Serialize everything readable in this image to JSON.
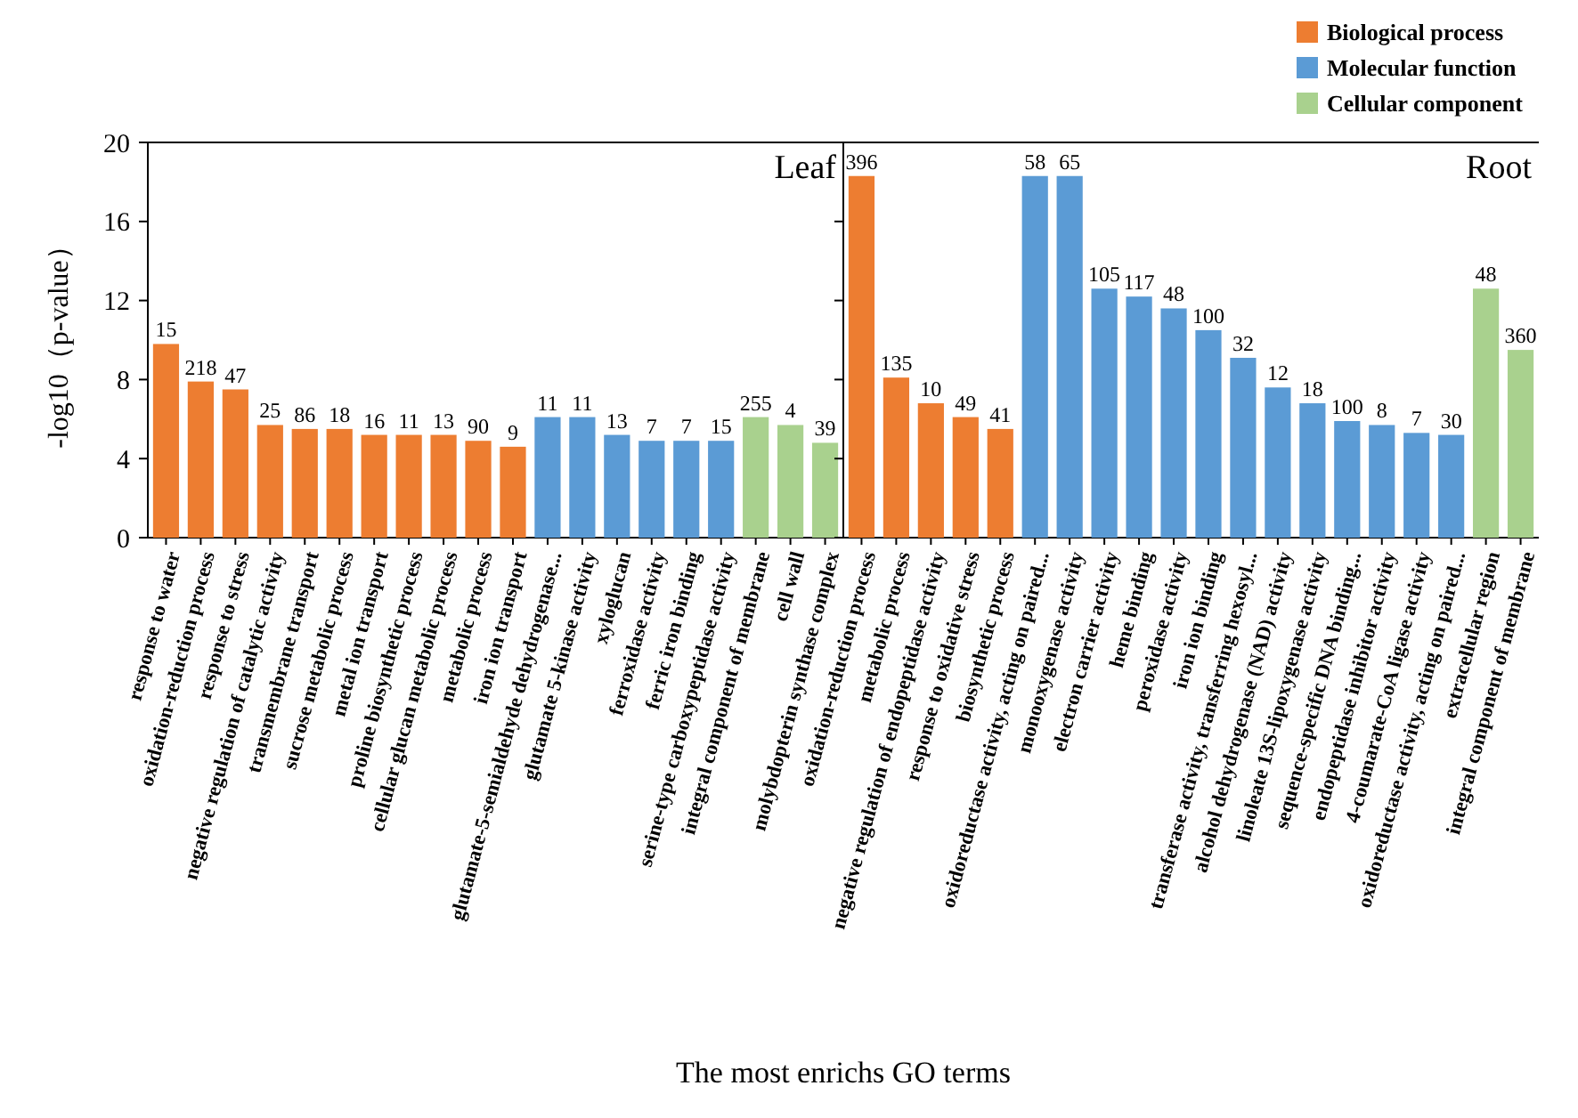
{
  "chart_data": [
    {
      "type": "bar",
      "ylabel": "-log10（p-value）",
      "xlabel": "The most enrichs GO terms",
      "annotations": [
        "Leaf"
      ],
      "ylim": [
        0,
        20
      ],
      "yticks": [
        0,
        4,
        8,
        12,
        16,
        20
      ],
      "legend": false,
      "categories": [
        "response to water",
        "oxidation-reduction process",
        "response to stress",
        "negative regulation of catalytic activity",
        "transmembrane transport",
        "sucrose metabolic process",
        "metal ion transport",
        "proline biosynthetic process",
        "cellular glucan metabolic process",
        "metabolic process",
        "iron ion transport",
        "glutamate-5-semialdehyde dehydrogenase...",
        "glutamate 5-kinase activity",
        "xyloglucan",
        "ferroxidase activity",
        "ferric iron binding",
        "serine-type carboxypeptidase activity",
        "integral component of membrane",
        "cell wall",
        "molybdopterin synthase complex"
      ],
      "series": [
        {
          "color": "#ed7d31",
          "values": [
            9.8,
            7.9,
            7.5,
            5.7,
            5.5,
            5.5,
            5.2,
            5.2,
            5.2,
            4.9,
            4.6,
            null,
            null,
            null,
            null,
            null,
            null,
            null,
            null,
            null
          ]
        },
        {
          "color": "#5b9bd5",
          "values": [
            null,
            null,
            null,
            null,
            null,
            null,
            null,
            null,
            null,
            null,
            null,
            6.1,
            6.1,
            5.2,
            4.9,
            4.9,
            4.9,
            null,
            null,
            null
          ]
        },
        {
          "color": "#a9d18e",
          "values": [
            null,
            null,
            null,
            null,
            null,
            null,
            null,
            null,
            null,
            null,
            null,
            null,
            null,
            null,
            null,
            null,
            null,
            6.1,
            5.7,
            4.8
          ]
        }
      ],
      "value_labels": [
        "15",
        "218",
        "47",
        "25",
        "86",
        "18",
        "16",
        "11",
        "13",
        "90",
        "9",
        "11",
        "11",
        "13",
        "7",
        "7",
        "15",
        "255",
        "4",
        "39"
      ]
    },
    {
      "type": "bar",
      "annotations": [
        "Root"
      ],
      "ylim": [
        0,
        20
      ],
      "yticks": [
        0,
        4,
        8,
        12,
        16,
        20
      ],
      "tick_labels": "x",
      "legend": "top right",
      "categories": [
        "oxidation-reduction process",
        "metabolic process",
        "negative regulation of endopeptidase activity",
        "response to oxidative stress",
        "biosynthetic process",
        "oxidoreductase activity, acting on paired...",
        "monooxygenase activity",
        "electron carrier activity",
        "heme binding",
        "peroxidase activity",
        "iron ion binding",
        "transferase activity, transferring hexosyl...",
        "alcohol dehydrogenase (NAD) activity",
        "linoleate 13S-lipoxygenase activity",
        "sequence-specific DNA binding...",
        "endopeptidase inhibitor activity",
        "4-coumarate-CoA ligase activity",
        "oxidoreductase activity, acting on paired...",
        "extracellular region",
        "integral component of membrane"
      ],
      "series": [
        {
          "name": "Biological process",
          "color": "#ed7d31",
          "values": [
            18.3,
            8.1,
            6.8,
            6.1,
            5.5,
            null,
            null,
            null,
            null,
            null,
            null,
            null,
            null,
            null,
            null,
            null,
            null,
            null,
            null,
            null
          ]
        },
        {
          "name": "Molecular function",
          "color": "#5b9bd5",
          "values": [
            null,
            null,
            null,
            null,
            null,
            18.3,
            18.3,
            12.6,
            12.2,
            11.6,
            10.5,
            9.1,
            7.6,
            6.8,
            5.9,
            5.7,
            5.3,
            5.2,
            null,
            null
          ]
        },
        {
          "name": "Cellular component",
          "color": "#a9d18e",
          "values": [
            null,
            null,
            null,
            null,
            null,
            null,
            null,
            null,
            null,
            null,
            null,
            null,
            null,
            null,
            null,
            null,
            null,
            null,
            12.6,
            9.5
          ]
        }
      ],
      "value_labels": [
        "396",
        "135",
        "10",
        "49",
        "41",
        "58",
        "65",
        "105",
        "117",
        "48",
        "100",
        "32",
        "12",
        "18",
        "100",
        "8",
        "7",
        "30",
        "48",
        "360"
      ]
    }
  ]
}
